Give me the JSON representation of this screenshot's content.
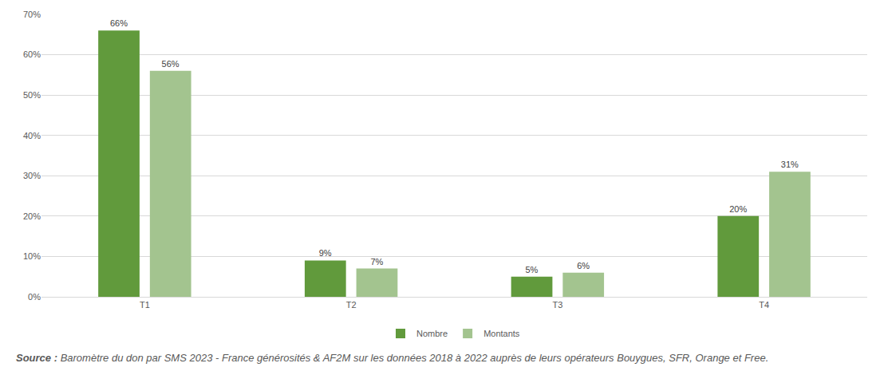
{
  "chart_data": {
    "type": "bar",
    "categories": [
      "T1",
      "T2",
      "T3",
      "T4"
    ],
    "series": [
      {
        "name": "Nombre",
        "color": "#619a3c",
        "values": [
          66,
          9,
          5,
          20
        ],
        "value_labels": [
          "66%",
          "9%",
          "5%",
          "20%"
        ]
      },
      {
        "name": "Montants",
        "color": "#a3c48f",
        "values": [
          56,
          7,
          6,
          31
        ],
        "value_labels": [
          "56%",
          "7%",
          "6%",
          "31%"
        ]
      }
    ],
    "ylim": [
      0,
      70
    ],
    "yticks": [
      {
        "value": 0,
        "label": "0%"
      },
      {
        "value": 10,
        "label": "10%"
      },
      {
        "value": 20,
        "label": "20%"
      },
      {
        "value": 30,
        "label": "30%"
      },
      {
        "value": 40,
        "label": "40%"
      },
      {
        "value": 50,
        "label": "50%"
      },
      {
        "value": 60,
        "label": "60%"
      },
      {
        "value": 70,
        "label": "70%"
      }
    ],
    "grid": true,
    "legend": "bottom",
    "data_labels": true,
    "source": {
      "label": "Source :",
      "text": "Baromètre du don par SMS 2023 - France générosités & AF2M sur les données 2018 à 2022 auprès de leurs opérateurs Bouygues, SFR, Orange et Free."
    }
  }
}
